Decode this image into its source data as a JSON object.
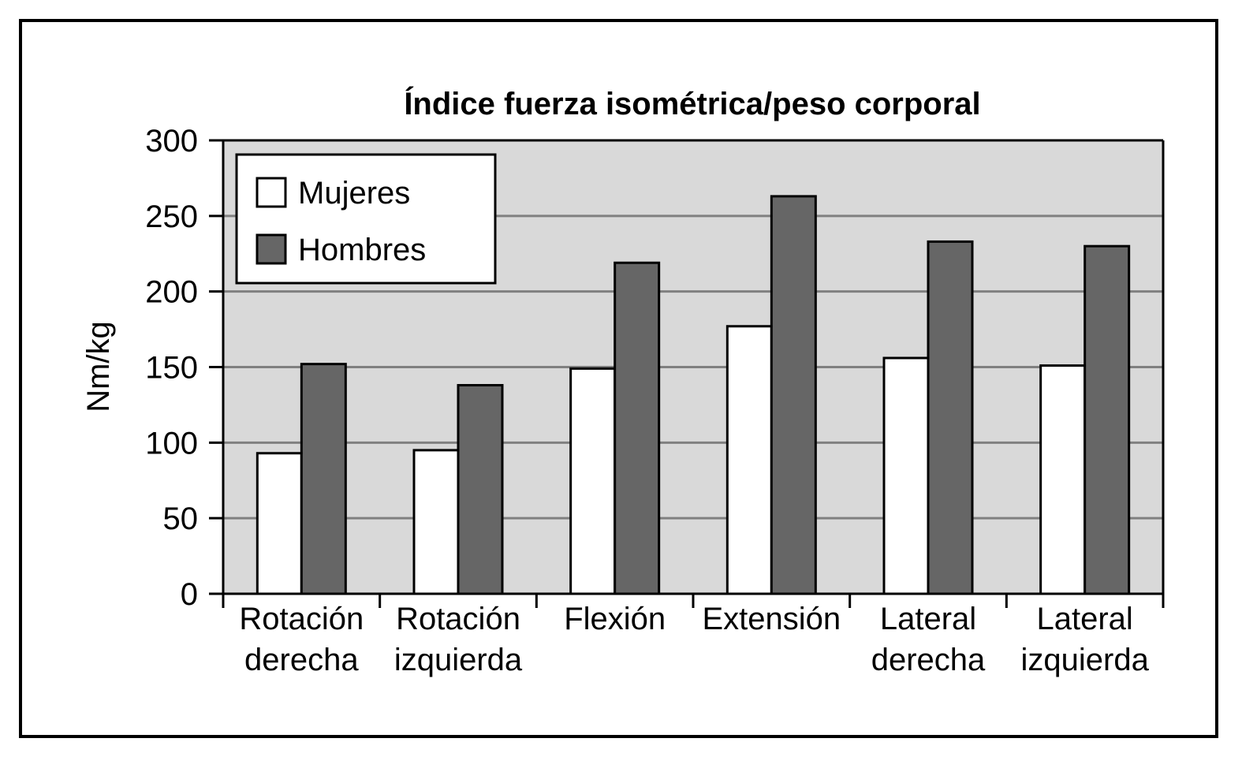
{
  "chart_data": {
    "type": "bar",
    "title": "Índice fuerza isométrica/peso corporal",
    "xlabel": "",
    "ylabel": "Nm/kg",
    "ylim": [
      0,
      300
    ],
    "yticks": [
      0,
      50,
      100,
      150,
      200,
      250,
      300
    ],
    "grid": true,
    "legend_position": "top-left",
    "categories": [
      [
        "Rotación",
        "derecha"
      ],
      [
        "Rotación",
        "izquierda"
      ],
      [
        "Flexión"
      ],
      [
        "Extensión"
      ],
      [
        "Lateral",
        "derecha"
      ],
      [
        "Lateral",
        "izquierda"
      ]
    ],
    "series": [
      {
        "name": "Mujeres",
        "color": "#ffffff",
        "values": [
          93,
          95,
          149,
          177,
          156,
          151
        ]
      },
      {
        "name": "Hombres",
        "color": "#666666",
        "values": [
          152,
          138,
          219,
          263,
          233,
          230
        ]
      }
    ],
    "colors": {
      "plot_background": "#d9d9d9",
      "gridline": "#808080",
      "stroke": "#000000"
    }
  }
}
